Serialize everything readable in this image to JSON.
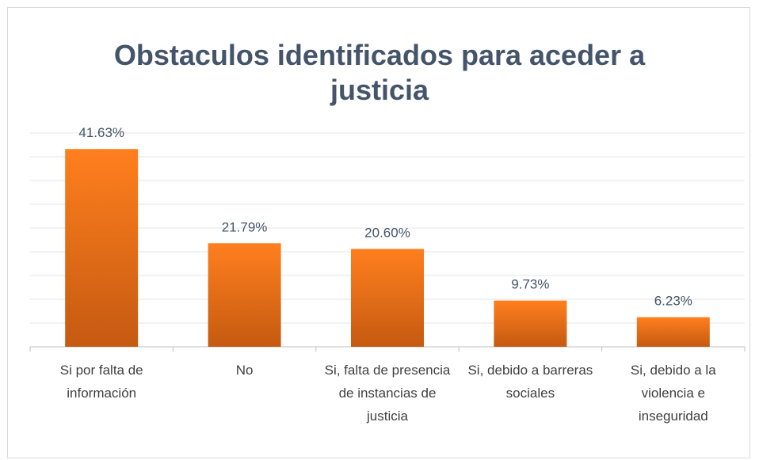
{
  "chart_data": {
    "type": "bar",
    "title": "Obstaculos identificados para aceder a justicia",
    "categories": [
      "Si por falta de información",
      "No",
      "Si, falta de presencia de instancias de justicia",
      "Si, debido a barreras sociales",
      "Si, debido a la violencia e inseguridad"
    ],
    "values": [
      41.63,
      21.79,
      20.6,
      9.73,
      6.23
    ],
    "value_labels": [
      "41.63%",
      "21.79%",
      "20.60%",
      "9.73%",
      "6.23%"
    ],
    "color": "#f07b1c",
    "ylim": [
      0,
      45
    ],
    "yticks": [
      0,
      5,
      10,
      15,
      20,
      25,
      30,
      35,
      40,
      45
    ],
    "grid": true
  }
}
